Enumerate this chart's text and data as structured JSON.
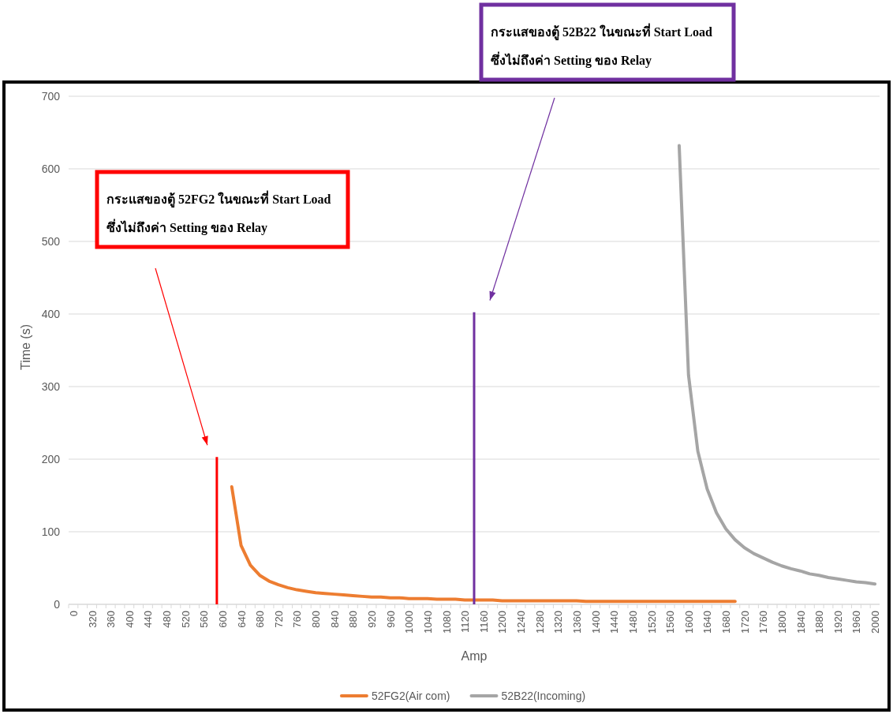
{
  "chart_data": {
    "type": "line",
    "xlabel": "Amp",
    "ylabel": "Time (s)",
    "categories": [
      "0",
      null,
      "320",
      null,
      "360",
      null,
      "400",
      null,
      "440",
      null,
      "480",
      null,
      "520",
      null,
      "560",
      null,
      "600",
      null,
      "640",
      null,
      "680",
      null,
      "720",
      null,
      "760",
      null,
      "800",
      null,
      "840",
      null,
      "880",
      null,
      "920",
      null,
      "960",
      null,
      "1000",
      null,
      "1040",
      null,
      "1080",
      null,
      "1120",
      null,
      "1160",
      null,
      "1200",
      null,
      "1240",
      null,
      "1280",
      null,
      "1320",
      null,
      "1360",
      null,
      "1400",
      null,
      "1440",
      null,
      "1480",
      null,
      "1520",
      null,
      "1560",
      null,
      "1600",
      null,
      "1640",
      null,
      "1680",
      null,
      "1720",
      null,
      "1760",
      null,
      "1800",
      null,
      "1840",
      null,
      "1880",
      null,
      "1920",
      null,
      "1960",
      null,
      "2000"
    ],
    "series": [
      {
        "name": "52FG2(Air com)",
        "color": "#ed7d31",
        "values": [
          null,
          null,
          null,
          null,
          null,
          null,
          null,
          null,
          null,
          null,
          null,
          null,
          null,
          null,
          null,
          null,
          null,
          162,
          81,
          54,
          40,
          32,
          27,
          23,
          20,
          18,
          16,
          15,
          14,
          13,
          12,
          11,
          10,
          10,
          9,
          9,
          8,
          8,
          8,
          7,
          7,
          7,
          6,
          6,
          6,
          6,
          5,
          5,
          5,
          5,
          5,
          5,
          5,
          5,
          5,
          4,
          4,
          4,
          4,
          4,
          4,
          4,
          4,
          4,
          4,
          4,
          4,
          4,
          4,
          4,
          4,
          4,
          null,
          null,
          null,
          null,
          null,
          null,
          null,
          null,
          null,
          null,
          null,
          null,
          null,
          null,
          null
        ]
      },
      {
        "name": "52B22(Incoming)",
        "color": "#a5a5a5",
        "values": [
          null,
          null,
          null,
          null,
          null,
          null,
          null,
          null,
          null,
          null,
          null,
          null,
          null,
          null,
          null,
          null,
          null,
          null,
          null,
          null,
          null,
          null,
          null,
          null,
          null,
          null,
          null,
          null,
          null,
          null,
          null,
          null,
          null,
          null,
          null,
          null,
          null,
          null,
          null,
          null,
          null,
          null,
          null,
          null,
          null,
          null,
          null,
          null,
          null,
          null,
          null,
          null,
          null,
          null,
          null,
          null,
          null,
          null,
          null,
          null,
          null,
          null,
          null,
          null,
          null,
          632,
          316,
          211,
          159,
          126,
          104,
          89,
          78,
          70,
          64,
          58,
          53,
          49,
          46,
          42,
          40,
          37,
          35,
          33,
          31,
          30,
          28
        ]
      }
    ],
    "ylim": [
      0,
      700
    ],
    "yticks": [
      0,
      100,
      200,
      300,
      400,
      500,
      600,
      700
    ],
    "grid": "y",
    "legend": "bottom",
    "annotations": [
      "กระแสของตู้ 52FG2 ในขณะที่ Start Load ซึ่งไม่ถึงค่า Setting ของ Relay",
      "กระแสของตู้ 52B22 ในขณะที่ Start Load ซึ่งไม่ถึงค่า Setting ของ Relay"
    ]
  }
}
